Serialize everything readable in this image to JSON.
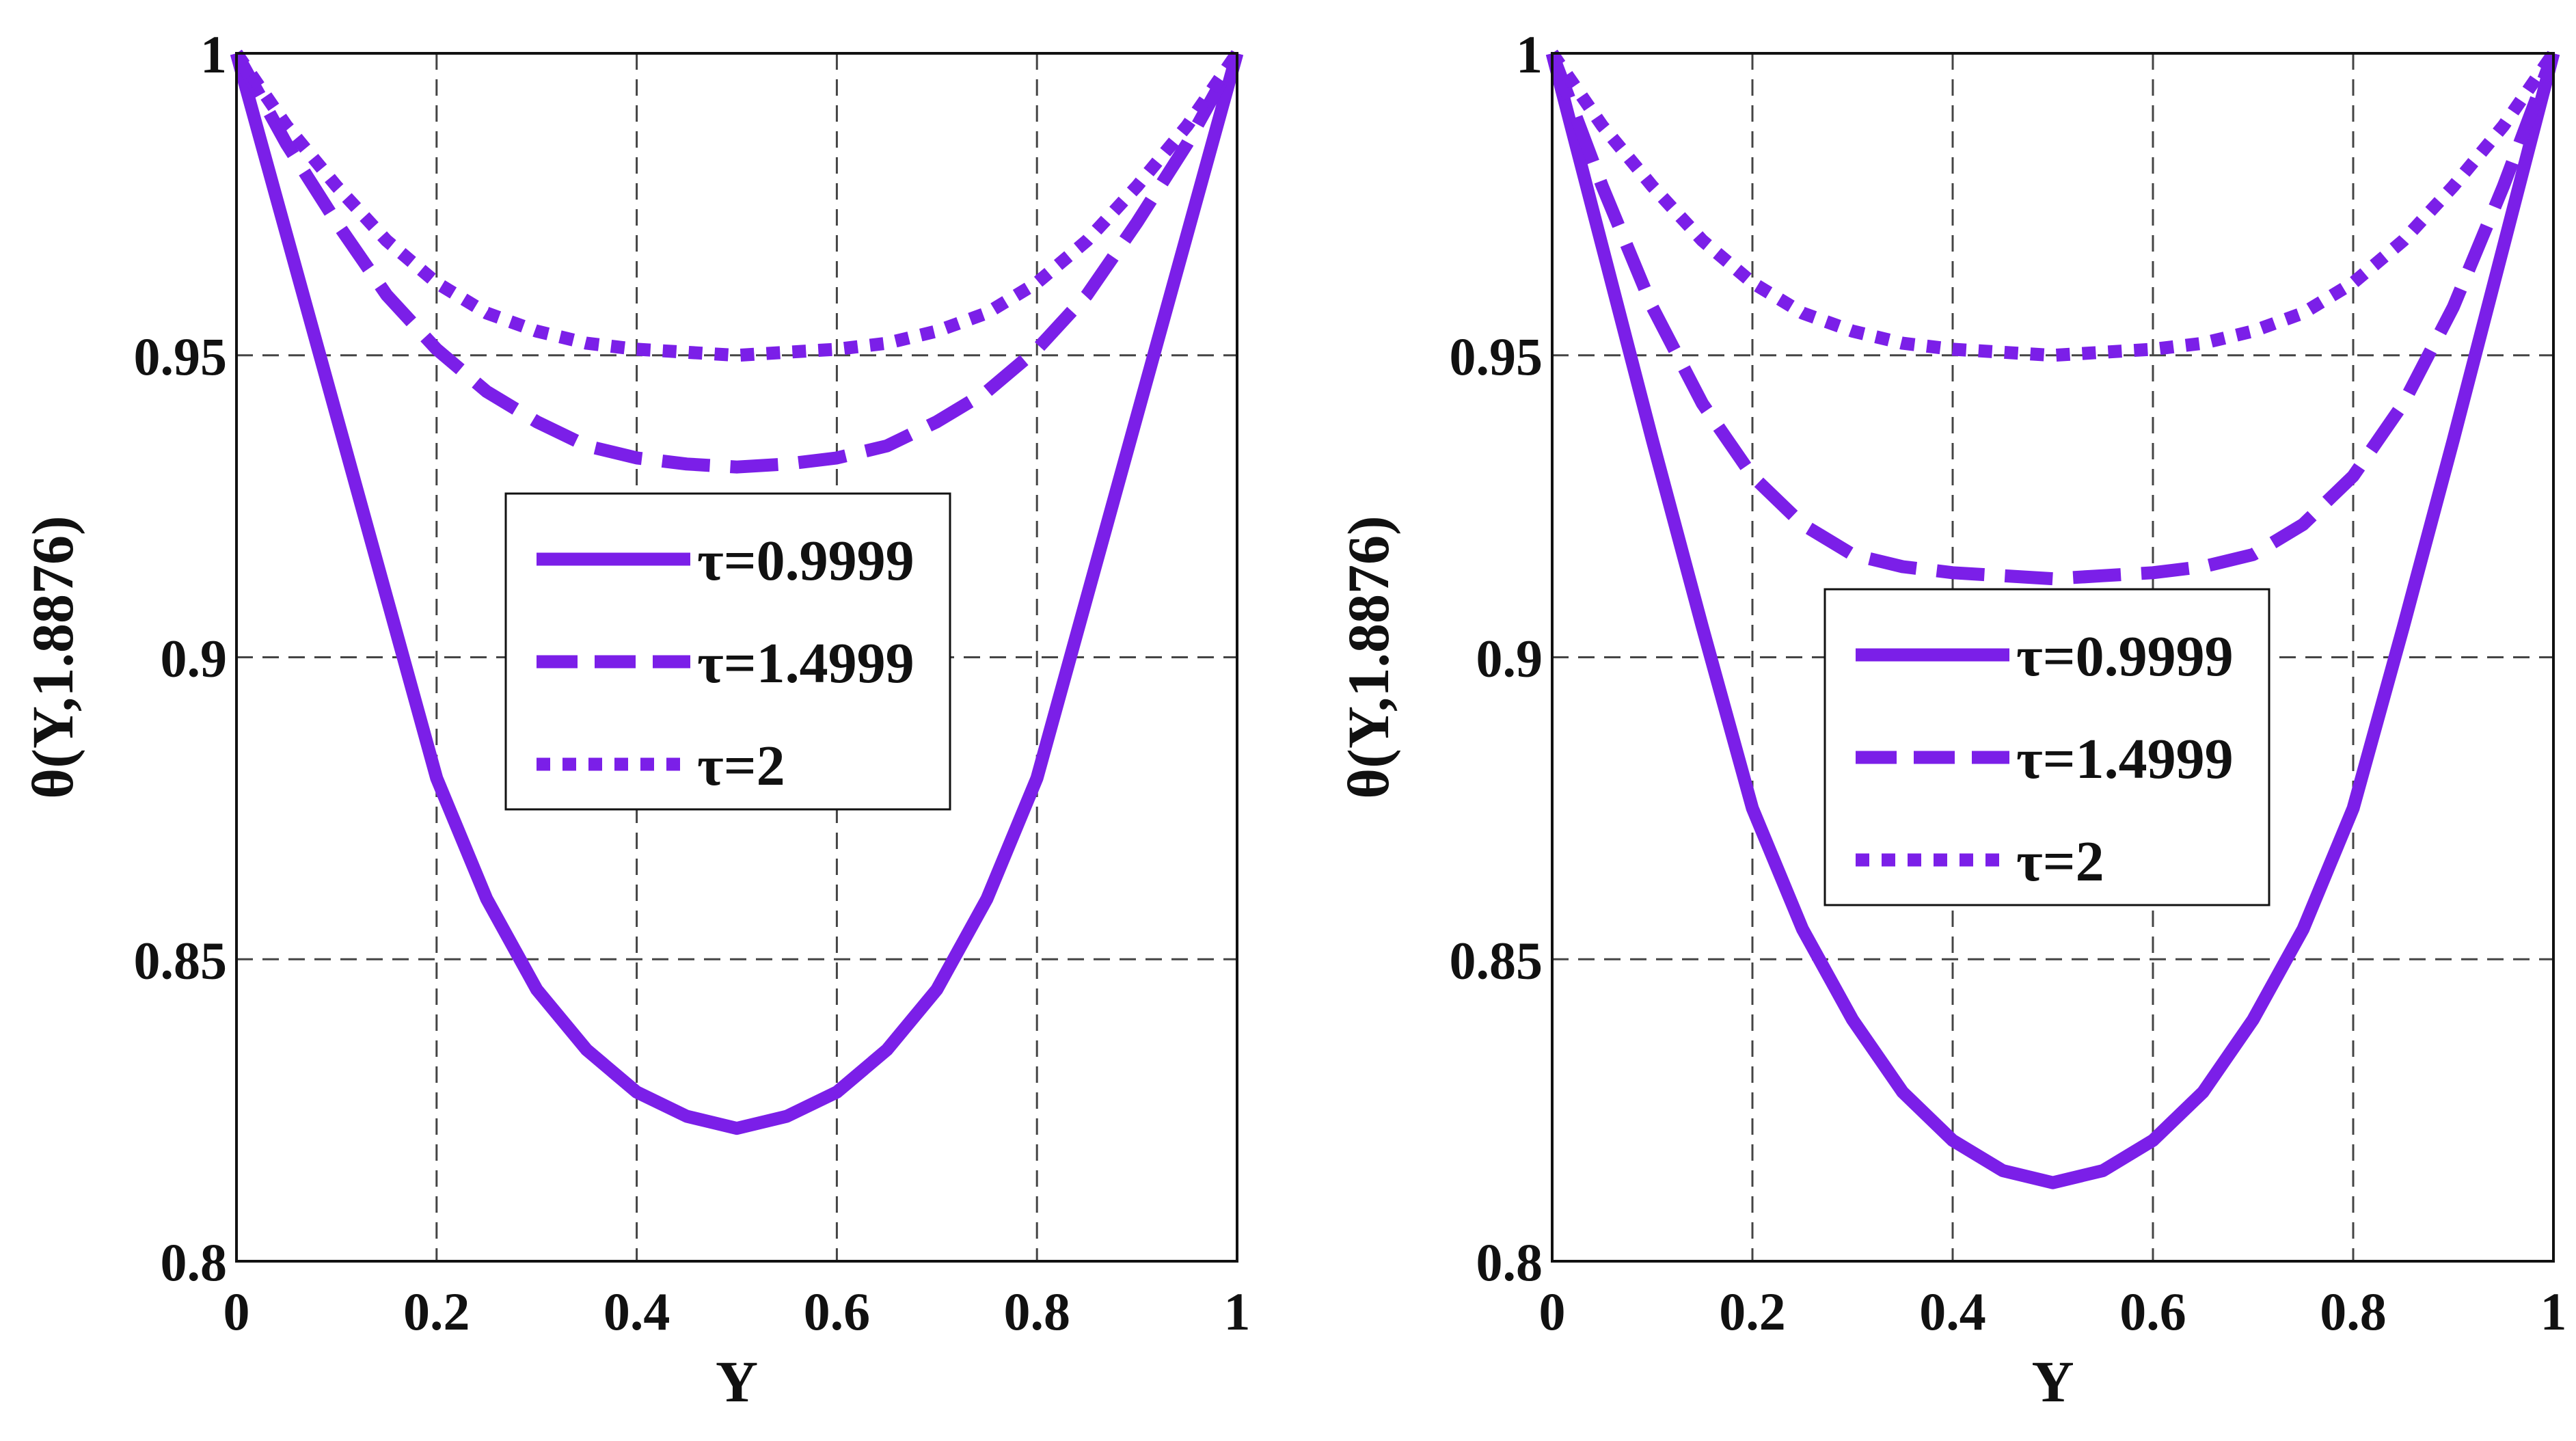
{
  "colors": {
    "series": "#7B1FE8",
    "axis": "#111111",
    "grid": "#444444"
  },
  "chart_data": [
    {
      "type": "line",
      "title": "",
      "xlabel": "Y",
      "ylabel": "θ(Y,1.8876)",
      "xlim": [
        0,
        1
      ],
      "ylim": [
        0.8,
        1
      ],
      "xticks": [
        "0",
        "0.2",
        "0.4",
        "0.6",
        "0.8",
        "1"
      ],
      "yticks": [
        "0.8",
        "0.85",
        "0.9",
        "0.95",
        "1"
      ],
      "grid": true,
      "legend_position": "center",
      "x": [
        0,
        0.05,
        0.1,
        0.15,
        0.2,
        0.25,
        0.3,
        0.35,
        0.4,
        0.45,
        0.5,
        0.55,
        0.6,
        0.65,
        0.7,
        0.75,
        0.8,
        0.85,
        0.9,
        0.95,
        1
      ],
      "series": [
        {
          "name": "τ=0.9999",
          "style": "solid",
          "values": [
            1.0,
            0.97,
            0.94,
            0.91,
            0.88,
            0.86,
            0.845,
            0.835,
            0.828,
            0.824,
            0.822,
            0.824,
            0.828,
            0.835,
            0.845,
            0.86,
            0.88,
            0.91,
            0.94,
            0.97,
            1.0
          ]
        },
        {
          "name": "τ=1.4999",
          "style": "dashed",
          "values": [
            1.0,
            0.985,
            0.972,
            0.96,
            0.951,
            0.944,
            0.939,
            0.935,
            0.933,
            0.932,
            0.9315,
            0.932,
            0.933,
            0.935,
            0.939,
            0.944,
            0.951,
            0.96,
            0.972,
            0.985,
            1.0
          ]
        },
        {
          "name": "τ=2",
          "style": "dotted",
          "values": [
            1.0,
            0.988,
            0.978,
            0.969,
            0.962,
            0.957,
            0.954,
            0.952,
            0.951,
            0.9505,
            0.95,
            0.9505,
            0.951,
            0.952,
            0.954,
            0.957,
            0.962,
            0.969,
            0.978,
            0.988,
            1.0
          ]
        }
      ]
    },
    {
      "type": "line",
      "title": "",
      "xlabel": "Y",
      "ylabel": "θ(Y,1.8876)",
      "xlim": [
        0,
        1
      ],
      "ylim": [
        0.8,
        1
      ],
      "xticks": [
        "0",
        "0.2",
        "0.4",
        "0.6",
        "0.8",
        "1"
      ],
      "yticks": [
        "0.8",
        "0.85",
        "0.9",
        "0.95",
        "1"
      ],
      "grid": true,
      "legend_position": "center",
      "x": [
        0,
        0.05,
        0.1,
        0.15,
        0.2,
        0.25,
        0.3,
        0.35,
        0.4,
        0.45,
        0.5,
        0.55,
        0.6,
        0.65,
        0.7,
        0.75,
        0.8,
        0.85,
        0.9,
        0.95,
        1
      ],
      "series": [
        {
          "name": "τ=0.9999",
          "style": "solid",
          "values": [
            1.0,
            0.968,
            0.936,
            0.905,
            0.875,
            0.855,
            0.84,
            0.828,
            0.82,
            0.815,
            0.813,
            0.815,
            0.82,
            0.828,
            0.84,
            0.855,
            0.875,
            0.905,
            0.936,
            0.968,
            1.0
          ]
        },
        {
          "name": "τ=1.4999",
          "style": "dashed",
          "values": [
            1.0,
            0.978,
            0.958,
            0.942,
            0.93,
            0.922,
            0.917,
            0.915,
            0.914,
            0.9135,
            0.913,
            0.9135,
            0.914,
            0.915,
            0.917,
            0.922,
            0.93,
            0.942,
            0.958,
            0.978,
            1.0
          ]
        },
        {
          "name": "τ=2",
          "style": "dotted",
          "values": [
            1.0,
            0.988,
            0.978,
            0.969,
            0.962,
            0.957,
            0.954,
            0.952,
            0.951,
            0.9505,
            0.95,
            0.9505,
            0.951,
            0.952,
            0.954,
            0.957,
            0.962,
            0.969,
            0.978,
            0.988,
            1.0
          ]
        }
      ]
    }
  ]
}
